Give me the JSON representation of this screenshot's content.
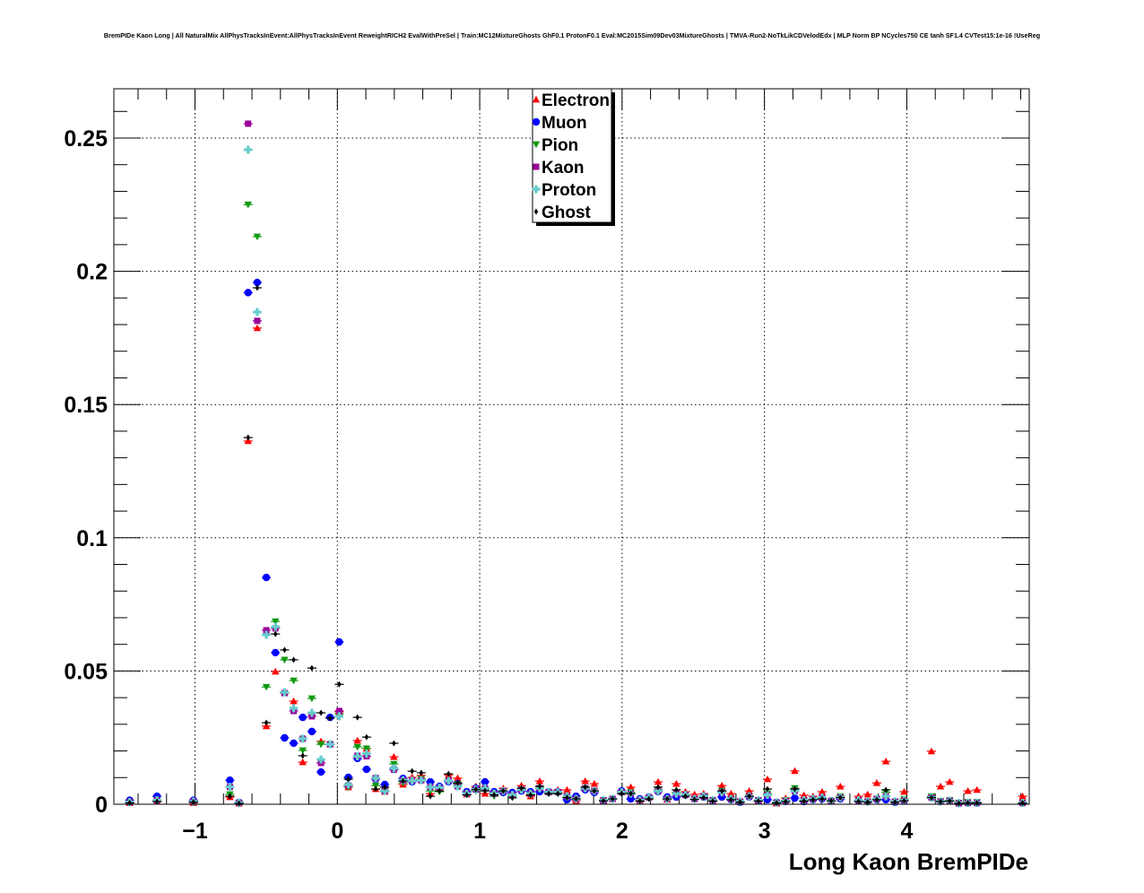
{
  "chart_data": {
    "type": "scatter",
    "title": "BremPIDe Kaon Long | All NaturalMix AllPhysTracksInEvent:AllPhysTracksInEvent ReweightRICH2 EvalWithPreSel | Train:MC12MixtureGhosts GhF0.1 ProtonF0.1 Eval:MC2015Sim09Dev03MixtureGhosts | TMVA-Run2-NoTkLikCDVelodEdx | MLP Norm BP NCycles750 CE tanh SF1.4 CVTest15:1e-16 !UseReg",
    "xlabel": "Long Kaon BremPIDe",
    "ylabel": "",
    "xlim": [
      -1.57,
      4.86
    ],
    "ylim": [
      0,
      0.2685
    ],
    "xticks": [
      {
        "v": -1,
        "label": "−1"
      },
      {
        "v": 0,
        "label": "0"
      },
      {
        "v": 1,
        "label": "1"
      },
      {
        "v": 2,
        "label": "2"
      },
      {
        "v": 3,
        "label": "3"
      },
      {
        "v": 4,
        "label": "4"
      }
    ],
    "yticks": [
      {
        "v": 0,
        "label": "0"
      },
      {
        "v": 0.05,
        "label": "0.05"
      },
      {
        "v": 0.1,
        "label": "0.1"
      },
      {
        "v": 0.15,
        "label": "0.15"
      },
      {
        "v": 0.2,
        "label": "0.2"
      },
      {
        "v": 0.25,
        "label": "0.25"
      }
    ],
    "grid": true,
    "legend_position": "top-center",
    "bin_first_center": -1.459,
    "bin_width": 0.064,
    "series": [
      {
        "name": "Electron",
        "color": "#ff0000",
        "marker": "triangle-up",
        "values": [
          0.0005,
          null,
          null,
          0.001,
          null,
          null,
          null,
          0.0005,
          null,
          null,
          null,
          0.0027,
          0.0003,
          0.1363,
          0.1787,
          0.0293,
          0.0498,
          0.042,
          0.0387,
          0.0158,
          0.0343,
          0.0236,
          0.0225,
          0.0347,
          0.0064,
          0.0239,
          0.0209,
          0.0057,
          0.0047,
          0.0178,
          0.0074,
          0.0101,
          0.0108,
          0.004,
          0.0057,
          0.011,
          0.0098,
          0.0037,
          0.0067,
          0.004,
          0.0044,
          0.006,
          0.0044,
          0.007,
          0.003,
          0.0087,
          0.0047,
          0.0054,
          0.0054,
          0.0013,
          0.0087,
          0.0077,
          0.0013,
          0.002,
          0.0047,
          0.0064,
          0.001,
          0.0027,
          0.0084,
          0.0017,
          0.0077,
          0.0047,
          0.0037,
          0.004,
          0.0017,
          0.007,
          0.004,
          0.001,
          0.005,
          0.0013,
          0.0094,
          0.0003,
          0.0023,
          0.0125,
          0.0034,
          0.003,
          0.0047,
          0.0013,
          0.0067,
          null,
          0.003,
          0.0037,
          0.008,
          0.0161,
          0.0013,
          0.0047,
          null,
          null,
          0.0199,
          0.0067,
          0.0084,
          0.0007,
          0.005,
          0.0054,
          null,
          null,
          null,
          null,
          0.003
        ]
      },
      {
        "name": "Muon",
        "color": "#0000ff",
        "marker": "circle",
        "values": [
          0.0015,
          null,
          null,
          0.003,
          null,
          null,
          null,
          0.0015,
          null,
          null,
          null,
          0.009,
          0.0007,
          0.192,
          0.1958,
          0.0851,
          0.0569,
          0.0249,
          0.0229,
          0.0326,
          0.0273,
          0.0121,
          0.0326,
          0.0609,
          0.0101,
          0.0172,
          0.0131,
          0.0094,
          0.0074,
          0.0131,
          0.0097,
          0.0084,
          0.009,
          0.0084,
          0.0067,
          0.0084,
          0.0077,
          0.0047,
          0.006,
          0.0084,
          0.0047,
          0.0044,
          0.0044,
          0.005,
          0.0047,
          0.0047,
          0.0047,
          0.0047,
          0.0017,
          0.003,
          0.0054,
          0.0044,
          0.0013,
          0.002,
          0.005,
          0.002,
          0.002,
          0.0027,
          0.0047,
          0.0027,
          0.0027,
          0.0034,
          0.002,
          0.0027,
          0.0013,
          0.0027,
          0.0017,
          0.0007,
          0.0027,
          0.0013,
          0.0017,
          0.0007,
          0.001,
          0.0023,
          0.001,
          0.0017,
          0.002,
          0.0013,
          0.002,
          null,
          0.0013,
          0.001,
          0.0017,
          0.0017,
          0.0007,
          0.0013,
          null,
          null,
          0.0025,
          0.001,
          0.0013,
          0.0003,
          0.0004,
          0.0004,
          null,
          null,
          null,
          null,
          0.0004
        ]
      },
      {
        "name": "Pion",
        "color": "#119911",
        "marker": "triangle-down",
        "values": [
          0.0008,
          null,
          null,
          0.0015,
          null,
          null,
          null,
          0.001,
          null,
          null,
          null,
          0.0037,
          0.0005,
          0.225,
          0.213,
          0.044,
          0.0686,
          0.0542,
          0.0464,
          0.0202,
          0.0397,
          0.0225,
          0.0225,
          0.034,
          0.0064,
          0.0215,
          0.0209,
          0.007,
          0.0047,
          0.0151,
          0.008,
          0.009,
          0.0095,
          0.005,
          0.0047,
          0.009,
          0.0075,
          0.004,
          0.005,
          0.0055,
          0.003,
          0.005,
          0.003,
          0.0055,
          0.0035,
          0.006,
          0.004,
          0.004,
          0.003,
          0.002,
          0.006,
          0.005,
          0.0015,
          0.002,
          0.004,
          0.0045,
          0.0015,
          0.0025,
          0.0055,
          0.002,
          0.0045,
          0.0035,
          0.002,
          0.003,
          0.0015,
          0.005,
          0.002,
          0.001,
          0.003,
          0.0015,
          0.004,
          0.0005,
          0.0015,
          0.006,
          0.0015,
          0.002,
          0.002,
          0.001,
          0.003,
          null,
          0.0015,
          0.001,
          0.002,
          0.0045,
          0.001,
          0.002,
          null,
          null,
          0.003,
          0.0012,
          0.0015,
          0.0005,
          0.0008,
          0.0008,
          null,
          null,
          null,
          null,
          0.0006
        ]
      },
      {
        "name": "Kaon",
        "color": "#990099",
        "marker": "square",
        "values": [
          0.0008,
          null,
          null,
          0.0015,
          null,
          null,
          null,
          0.001,
          null,
          null,
          null,
          0.0065,
          0.0005,
          0.2554,
          0.1814,
          0.0653,
          0.066,
          0.0417,
          0.035,
          0.0246,
          0.033,
          0.0155,
          0.0225,
          0.035,
          0.007,
          0.0182,
          0.018,
          0.0098,
          0.005,
          0.013,
          0.009,
          0.009,
          0.009,
          0.0064,
          0.006,
          0.009,
          0.0067,
          0.004,
          0.0055,
          0.006,
          0.004,
          0.005,
          0.0035,
          0.0055,
          0.004,
          0.006,
          0.0045,
          0.0045,
          0.003,
          0.002,
          0.006,
          0.005,
          0.0015,
          0.002,
          0.0045,
          0.004,
          0.0015,
          0.0025,
          0.005,
          0.002,
          0.004,
          0.0035,
          0.002,
          0.003,
          0.0015,
          0.0045,
          0.002,
          0.001,
          0.003,
          0.0015,
          0.0035,
          0.0007,
          0.0012,
          0.005,
          0.0015,
          0.002,
          0.0025,
          0.0012,
          0.0025,
          null,
          0.0015,
          0.001,
          0.002,
          0.003,
          0.001,
          0.0015,
          null,
          null,
          0.0025,
          0.001,
          0.0013,
          0.0004,
          0.0006,
          0.0006,
          null,
          null,
          null,
          null,
          0.0005
        ]
      },
      {
        "name": "Proton",
        "color": "#66cccc",
        "marker": "cross",
        "values": [
          0.0008,
          null,
          null,
          0.0015,
          null,
          null,
          null,
          0.001,
          null,
          null,
          null,
          0.0065,
          0.0005,
          0.2456,
          0.1847,
          0.0636,
          0.0666,
          0.042,
          0.036,
          0.0246,
          0.0343,
          0.0168,
          0.0225,
          0.033,
          0.0074,
          0.018,
          0.019,
          0.0098,
          0.005,
          0.0135,
          0.009,
          0.0088,
          0.009,
          0.0064,
          0.0062,
          0.0088,
          0.0067,
          0.004,
          0.0055,
          0.006,
          0.004,
          0.005,
          0.0035,
          0.0055,
          0.004,
          0.006,
          0.0045,
          0.0045,
          0.003,
          0.002,
          0.006,
          0.005,
          0.0015,
          0.002,
          0.0045,
          0.004,
          0.0015,
          0.0025,
          0.005,
          0.002,
          0.004,
          0.0035,
          0.002,
          0.003,
          0.0015,
          0.0045,
          0.002,
          0.001,
          0.003,
          0.0015,
          0.0035,
          0.0007,
          0.0012,
          0.005,
          0.0015,
          0.002,
          0.0025,
          0.0012,
          0.0025,
          null,
          0.0015,
          0.001,
          0.002,
          0.003,
          0.001,
          0.0015,
          null,
          null,
          0.0025,
          0.001,
          0.0013,
          0.0004,
          0.0006,
          0.0006,
          null,
          null,
          null,
          null,
          0.0005
        ]
      },
      {
        "name": "Ghost",
        "color": "#000000",
        "marker": "diamond",
        "values": [
          0.0005,
          null,
          null,
          0.001,
          null,
          null,
          null,
          0.0008,
          null,
          null,
          null,
          0.003,
          0.0003,
          0.1376,
          0.1938,
          0.0306,
          0.0639,
          0.0579,
          0.0542,
          0.0182,
          0.0511,
          0.0343,
          0.0323,
          0.045,
          0.0094,
          0.0326,
          0.0252,
          0.0057,
          0.0064,
          0.0229,
          0.0087,
          0.0124,
          0.0118,
          0.003,
          0.005,
          0.0114,
          0.008,
          0.0035,
          0.0055,
          0.005,
          0.0035,
          0.005,
          0.0024,
          0.006,
          0.0035,
          0.0067,
          0.004,
          0.004,
          0.0025,
          0.002,
          0.0064,
          0.005,
          0.0013,
          0.002,
          0.004,
          0.004,
          0.0012,
          0.002,
          0.0064,
          0.002,
          0.0054,
          0.003,
          0.0018,
          0.0025,
          0.0012,
          0.005,
          0.0017,
          0.0008,
          0.003,
          0.0012,
          0.0057,
          0.0005,
          0.001,
          0.0057,
          0.0012,
          0.0017,
          0.002,
          0.0013,
          0.0025,
          null,
          0.001,
          0.0008,
          0.0017,
          0.0054,
          0.0008,
          0.0013,
          null,
          null,
          0.0025,
          0.001,
          0.0012,
          0.0003,
          0.0005,
          0.0005,
          null,
          null,
          null,
          null,
          0.0004
        ]
      }
    ]
  }
}
